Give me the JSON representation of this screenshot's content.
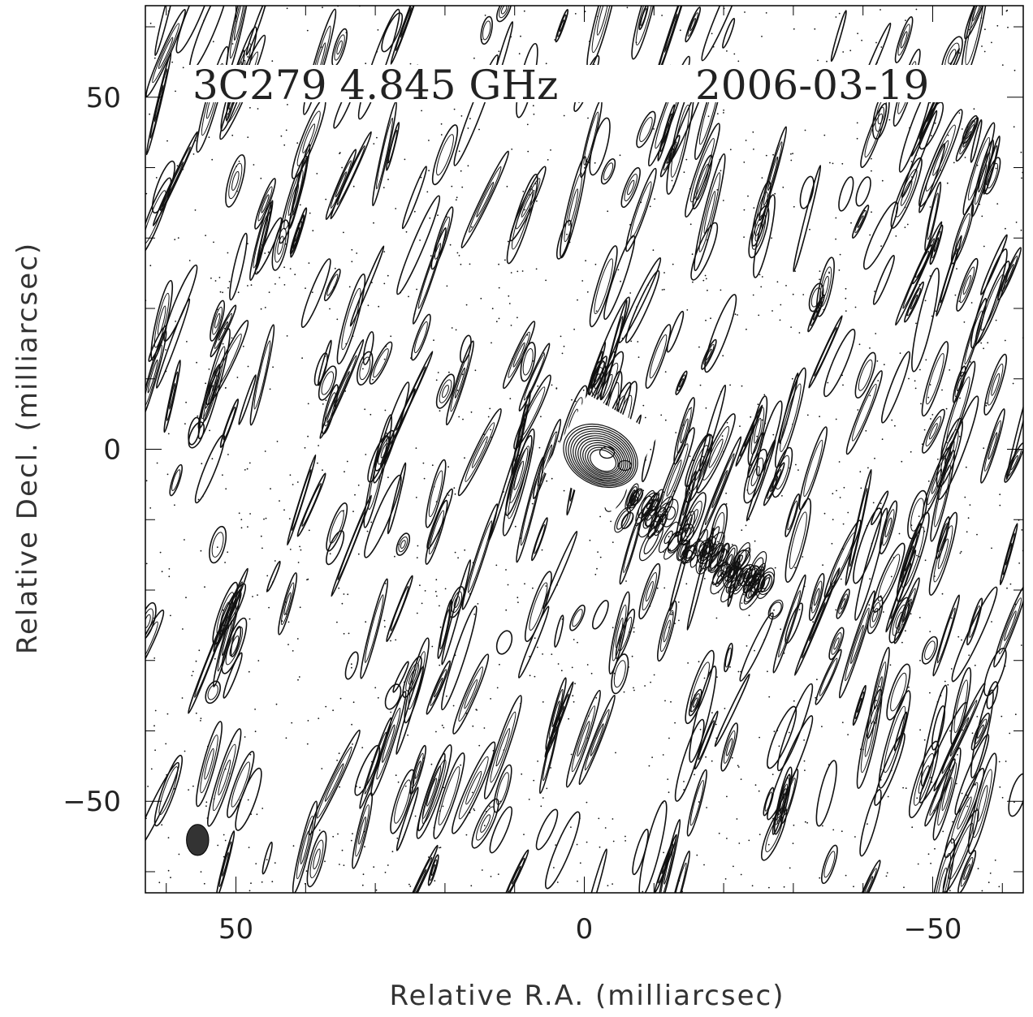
{
  "chart_data": {
    "type": "contour",
    "title_left": "3C279 4.845 GHz",
    "title_right": "2006-03-19",
    "xlabel": "Relative R.A. (milliarcsec)",
    "ylabel": "Relative Decl. (milliarcsec)",
    "xlim": [
      63,
      -63
    ],
    "ylim": [
      -63,
      63
    ],
    "x_ticks": [
      50,
      0,
      -50
    ],
    "x_tick_labels": [
      "50",
      "0",
      "−50"
    ],
    "y_ticks": [
      50,
      0,
      -50
    ],
    "y_tick_labels": [
      "50",
      "0",
      "−50"
    ],
    "minor_tick_step": 10,
    "core": {
      "x": 0,
      "y": 0
    },
    "jet_direction": "south-west",
    "beam": {
      "x": 55.5,
      "y": -55.5,
      "major": 2.2,
      "minor": 1.6,
      "pa_deg": 0
    },
    "colors": {
      "contour": "#111111",
      "beam": "#333333",
      "frame": "#000000"
    }
  }
}
